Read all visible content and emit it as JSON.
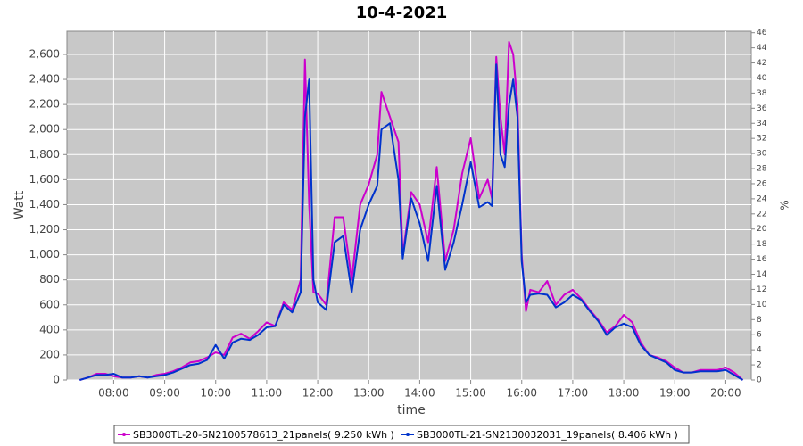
{
  "chart_data": {
    "type": "line",
    "title": "10-4-2021",
    "x_label": "time",
    "y_label": "Watt",
    "y2_label": "%",
    "x": [
      "07:20",
      "07:30",
      "07:40",
      "07:50",
      "08:00",
      "08:10",
      "08:20",
      "08:30",
      "08:40",
      "08:50",
      "09:00",
      "09:10",
      "09:20",
      "09:30",
      "09:40",
      "09:50",
      "10:00",
      "10:10",
      "10:20",
      "10:30",
      "10:40",
      "10:50",
      "11:00",
      "11:10",
      "11:20",
      "11:30",
      "11:40",
      "11:45",
      "11:50",
      "11:55",
      "12:00",
      "12:10",
      "12:20",
      "12:30",
      "12:40",
      "12:50",
      "13:00",
      "13:10",
      "13:15",
      "13:25",
      "13:35",
      "13:40",
      "13:50",
      "14:00",
      "14:10",
      "14:20",
      "14:30",
      "14:40",
      "14:50",
      "15:00",
      "15:10",
      "15:20",
      "15:25",
      "15:30",
      "15:35",
      "15:40",
      "15:45",
      "15:50",
      "15:55",
      "16:00",
      "16:05",
      "16:10",
      "16:20",
      "16:30",
      "16:40",
      "16:50",
      "17:00",
      "17:10",
      "17:20",
      "17:30",
      "17:40",
      "17:50",
      "18:00",
      "18:10",
      "18:20",
      "18:30",
      "18:40",
      "18:50",
      "19:00",
      "19:10",
      "19:20",
      "19:30",
      "19:40",
      "19:50",
      "20:00",
      "20:10",
      "20:20"
    ],
    "series": [
      {
        "name": "SB3000TL-20-SN2100578613_21panels( 9.250 kWh )",
        "color": "#cc00cc",
        "values": [
          0,
          20,
          50,
          50,
          30,
          20,
          20,
          30,
          20,
          40,
          50,
          70,
          100,
          140,
          150,
          180,
          220,
          200,
          340,
          370,
          330,
          390,
          460,
          430,
          620,
          560,
          800,
          2560,
          1400,
          700,
          690,
          600,
          1300,
          1300,
          800,
          1400,
          1560,
          1800,
          2300,
          2100,
          1900,
          1000,
          1500,
          1400,
          1100,
          1700,
          950,
          1200,
          1650,
          1930,
          1450,
          1600,
          1450,
          2580,
          2100,
          1800,
          2700,
          2600,
          2200,
          1000,
          550,
          720,
          700,
          790,
          600,
          680,
          720,
          650,
          560,
          480,
          380,
          430,
          520,
          460,
          300,
          200,
          180,
          150,
          100,
          60,
          60,
          80,
          80,
          80,
          100,
          60,
          0
        ]
      },
      {
        "name": "SB3000TL-21-SN2130032031_19panels( 8.406 kWh )",
        "color": "#0033cc",
        "values": [
          0,
          20,
          40,
          40,
          50,
          20,
          20,
          30,
          20,
          30,
          40,
          60,
          90,
          120,
          130,
          160,
          280,
          170,
          300,
          330,
          320,
          360,
          420,
          430,
          600,
          540,
          700,
          2100,
          2400,
          800,
          620,
          560,
          1100,
          1150,
          700,
          1200,
          1400,
          1550,
          2000,
          2050,
          1600,
          970,
          1450,
          1250,
          950,
          1550,
          880,
          1100,
          1400,
          1740,
          1380,
          1420,
          1390,
          2520,
          1800,
          1700,
          2200,
          2400,
          2100,
          950,
          620,
          680,
          690,
          680,
          580,
          620,
          680,
          640,
          550,
          470,
          360,
          420,
          450,
          420,
          280,
          200,
          170,
          140,
          80,
          60,
          60,
          70,
          70,
          70,
          80,
          40,
          0
        ]
      }
    ],
    "xlim": [
      "07:05",
      "20:30"
    ],
    "xticks": [
      "08:00",
      "09:00",
      "10:00",
      "11:00",
      "12:00",
      "13:00",
      "14:00",
      "15:00",
      "16:00",
      "17:00",
      "18:00",
      "19:00",
      "20:00"
    ],
    "ylim": [
      0,
      2785
    ],
    "yticks": [
      0,
      200,
      400,
      600,
      800,
      {
        "value": 1000,
        "label": "1,000"
      },
      {
        "value": 1200,
        "label": "1,200"
      },
      {
        "value": 1400,
        "label": "1,400"
      },
      {
        "value": 1600,
        "label": "1,600"
      },
      {
        "value": 1800,
        "label": "1,800"
      },
      {
        "value": 2000,
        "label": "2,000"
      },
      {
        "value": 2200,
        "label": "2,200"
      },
      {
        "value": 2400,
        "label": "2,400"
      },
      {
        "value": 2600,
        "label": "2,600"
      }
    ],
    "y2lim": [
      0,
      46.2
    ],
    "y2ticks": [
      0,
      2,
      4,
      6,
      8,
      10,
      12,
      14,
      16,
      18,
      20,
      22,
      24,
      26,
      28,
      30,
      32,
      34,
      36,
      38,
      40,
      42,
      44,
      46
    ],
    "grid": true,
    "legend": "bottom"
  }
}
